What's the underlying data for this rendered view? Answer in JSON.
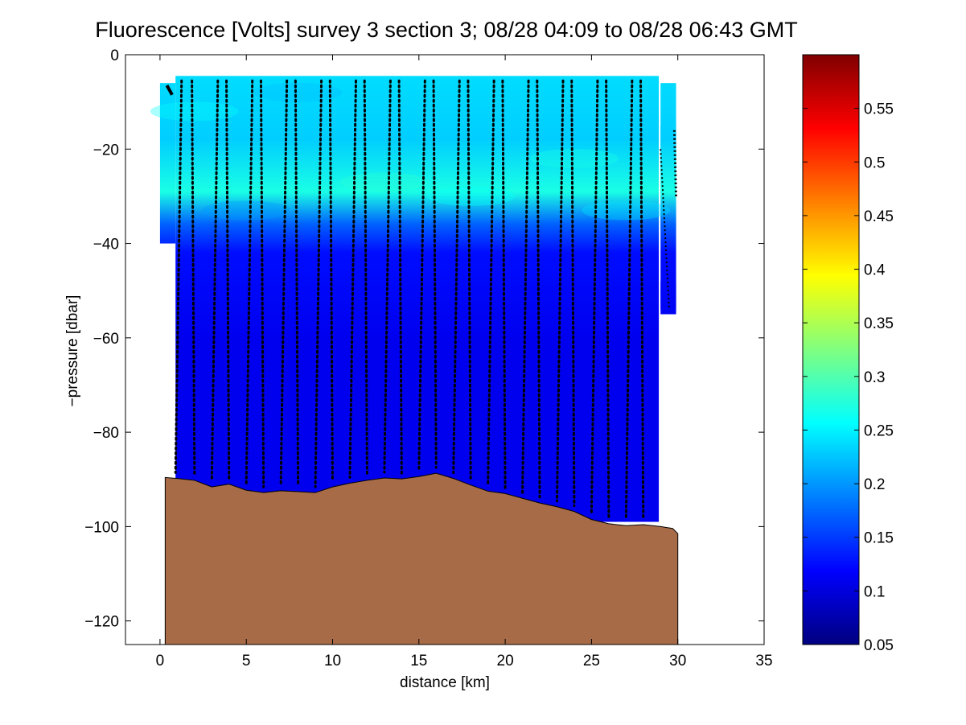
{
  "chart_data": {
    "type": "heatmap",
    "title": "Fluorescence [Volts] survey 3 section 3; 08/28 04:09 to 08/28 06:43 GMT",
    "xlabel": "distance [km]",
    "ylabel": "−pressure [dbar]",
    "xlim": [
      -2,
      35
    ],
    "ylim": [
      -125,
      0
    ],
    "x_ticks": [
      0,
      5,
      10,
      15,
      20,
      25,
      30,
      35
    ],
    "x_tick_labels": [
      "0",
      "5",
      "10",
      "15",
      "20",
      "25",
      "30",
      "35"
    ],
    "y_ticks": [
      0,
      -20,
      -40,
      -60,
      -80,
      -100,
      -120
    ],
    "y_tick_labels": [
      "0",
      "−20",
      "−40",
      "−60",
      "−80",
      "−100",
      "−120"
    ],
    "colorbar": {
      "colormap": "jet",
      "range": [
        0.05,
        0.6
      ],
      "ticks": [
        0.05,
        0.1,
        0.15,
        0.2,
        0.25,
        0.3,
        0.35,
        0.4,
        0.45,
        0.5,
        0.55
      ],
      "tick_labels": [
        "0.05",
        "0.1",
        "0.15",
        "0.2",
        "0.25",
        "0.3",
        "0.35",
        "0.4",
        "0.45",
        "0.5",
        "0.55"
      ]
    },
    "field": {
      "surface_value": 0.24,
      "subsurface_max_value": 0.27,
      "subsurface_max_depth": -29,
      "deep_value": 0.11,
      "data_top": -4.5
    },
    "data_extent": [
      {
        "x": 0.0,
        "top": -6,
        "bottom": -40
      },
      {
        "x": 0.9,
        "top": -4.5,
        "bottom": -93
      },
      {
        "x": 28.9,
        "top": -4.5,
        "bottom": -99
      },
      {
        "x": 29.0,
        "top": -6,
        "bottom": -55
      },
      {
        "x": 29.9,
        "top": -15,
        "bottom": -37
      },
      {
        "x": 29.9,
        "top": -48,
        "bottom": -54
      }
    ],
    "bathymetry": {
      "color": "#a86b47",
      "bottom": -125,
      "x": [
        0.3,
        1.0,
        2.0,
        3.0,
        4.0,
        5.0,
        6.0,
        7.0,
        8.0,
        9.0,
        10.0,
        11.0,
        12.0,
        13.0,
        14.0,
        15.0,
        16.0,
        17.0,
        18.0,
        19.0,
        20.0,
        21.0,
        22.0,
        23.0,
        24.0,
        25.0,
        26.0,
        27.0,
        28.0,
        29.0,
        29.7,
        30.0
      ],
      "depth": [
        -89.6,
        -89.8,
        -90.2,
        -91.6,
        -91.0,
        -92.3,
        -92.8,
        -92.4,
        -92.6,
        -92.8,
        -91.6,
        -90.8,
        -90.2,
        -89.7,
        -89.9,
        -89.4,
        -88.7,
        -89.8,
        -91.2,
        -92.5,
        -93.0,
        -94.0,
        -95.0,
        -95.8,
        -96.8,
        -98.5,
        -99.4,
        -99.8,
        -99.6,
        -100.0,
        -100.4,
        -101.5
      ]
    },
    "casts": {
      "x": [
        0.9,
        2.0,
        3.0,
        4.0,
        5.0,
        6.0,
        7.0,
        8.0,
        9.0,
        10.0,
        11.0,
        12.0,
        13.0,
        14.0,
        15.0,
        16.0,
        17.0,
        18.0,
        19.0,
        20.0,
        21.0,
        22.0,
        23.0,
        24.0,
        25.0,
        26.0,
        27.0,
        28.0
      ],
      "marker_color": "#000000",
      "marker": "dot"
    }
  }
}
